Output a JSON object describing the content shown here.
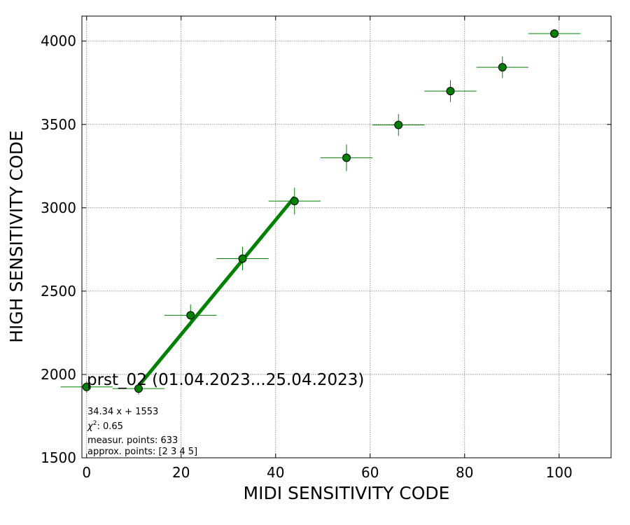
{
  "chart_data": {
    "type": "scatter",
    "xlabel": "MIDI SENSITIVITY CODE",
    "ylabel": "HIGH SENSITIVITY CODE",
    "xlim": [
      -1,
      111
    ],
    "ylim": [
      1500,
      4150
    ],
    "xticks": [
      0,
      20,
      40,
      60,
      80,
      100
    ],
    "yticks": [
      1500,
      2000,
      2500,
      3000,
      3500,
      4000
    ],
    "grid": true,
    "colors": {
      "series": "#008000",
      "marker_edge": "#000000",
      "grid": "#808080"
    },
    "series": [
      {
        "x": [
          0,
          11,
          22,
          33,
          44,
          55,
          66,
          77,
          88,
          99
        ],
        "y": [
          1925,
          1915,
          2355,
          2695,
          3040,
          3300,
          3497,
          3700,
          3843,
          4045
        ],
        "xerr": [
          5.5,
          5.5,
          5.5,
          5.5,
          5.5,
          5.5,
          5.5,
          5.5,
          5.5,
          5.5
        ],
        "yerr": [
          35,
          35,
          65,
          70,
          80,
          80,
          65,
          65,
          65,
          0
        ]
      }
    ],
    "fit_line": {
      "slope": 34.34,
      "intercept": 1553,
      "x_range": [
        11,
        44
      ]
    },
    "annotations": {
      "title": "prst_02 (01.04.2023...25.04.2023)",
      "equation": "34.34 x + 1553",
      "chi_label": "χ",
      "chi_exp": "2",
      "chi_value": ": 0.65",
      "points": "measur. points: 633",
      "approx": "approx. points: [2 3 4 5]"
    }
  }
}
